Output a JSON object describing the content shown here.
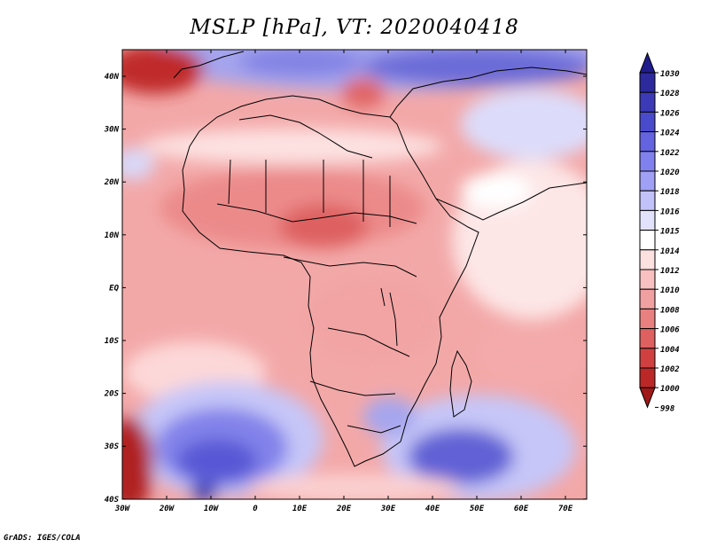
{
  "title": "MSLP [hPa], VT: 2020040418",
  "credit": "GrADS: IGES/COLA",
  "map": {
    "lat_labels": [
      "40N",
      "30N",
      "20N",
      "10N",
      "EQ",
      "10S",
      "20S",
      "30S",
      "40S"
    ],
    "lon_labels": [
      "30W",
      "20W",
      "10W",
      "0",
      "10E",
      "20E",
      "30E",
      "40E",
      "50E",
      "60E",
      "70E"
    ]
  },
  "colorbar": {
    "levels": [
      "1030",
      "1028",
      "1026",
      "1024",
      "1022",
      "1020",
      "1018",
      "1016",
      "1015",
      "1014",
      "1012",
      "1010",
      "1008",
      "1006",
      "1004",
      "1002",
      "1000",
      "998"
    ],
    "colors": [
      "#201c8c",
      "#2d2a9e",
      "#3c3ab6",
      "#4a4acc",
      "#6464e0",
      "#8080ee",
      "#a0a0f6",
      "#c2c2fa",
      "#e2e2fc",
      "#ffffff",
      "#fde0e0",
      "#f8c0c0",
      "#f0a0a0",
      "#e88080",
      "#de6060",
      "#d04040",
      "#bc2828",
      "#a01818"
    ]
  }
}
